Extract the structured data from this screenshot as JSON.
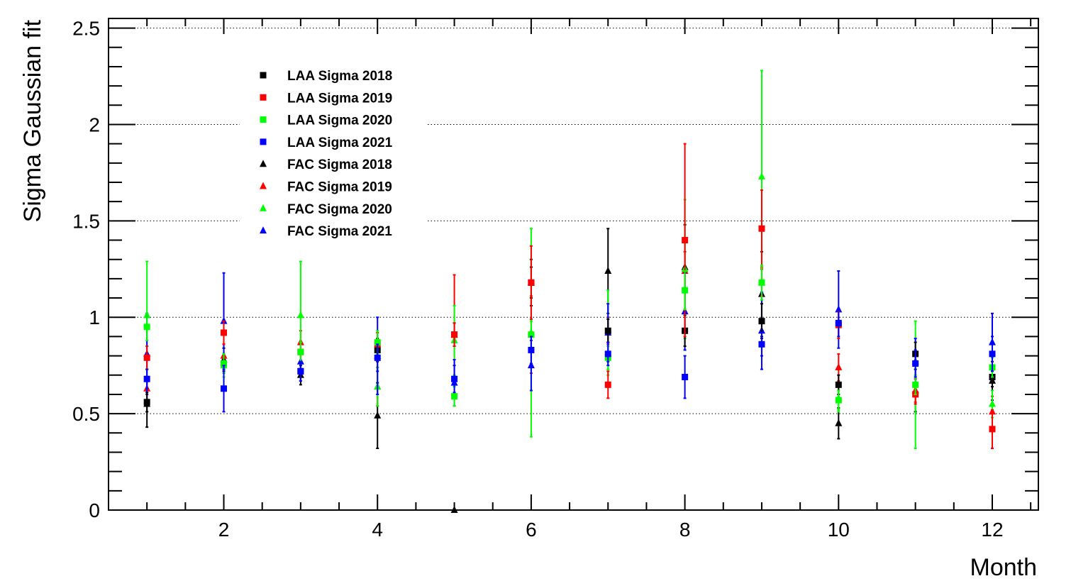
{
  "chart_data": {
    "type": "scatter",
    "xlabel": "Month",
    "ylabel": "Sigma Gaussian fit",
    "xlim": [
      0.5,
      12.6
    ],
    "ylim": [
      0,
      2.55
    ],
    "x_ticks": [
      2,
      4,
      6,
      8,
      10,
      12
    ],
    "x_tick_labels": [
      "2",
      "4",
      "6",
      "8",
      "10",
      "12"
    ],
    "y_ticks": [
      0,
      0.5,
      1,
      1.5,
      2,
      2.5
    ],
    "y_tick_labels": [
      "0",
      "0.5",
      "1",
      "1.5",
      "2",
      "2.5"
    ],
    "grid": "horizontal dotted",
    "legend_position": "top-left",
    "series": [
      {
        "name": "LAA Sigma 2018",
        "marker": "square",
        "color": "#000000",
        "points": [
          [
            1,
            0.56,
            0.05
          ],
          [
            2,
            0.76,
            0.05
          ],
          [
            3,
            0.72,
            0.05
          ],
          [
            4,
            0.83,
            0.06
          ],
          [
            5,
            0.91,
            0.06
          ],
          [
            6,
            1.18,
            0.08
          ],
          [
            7,
            0.93,
            0.06
          ],
          [
            8,
            0.93,
            0.08
          ],
          [
            9,
            0.98,
            0.09
          ],
          [
            10,
            0.65,
            0.05
          ],
          [
            11,
            0.81,
            0.06
          ],
          [
            12,
            0.69,
            0.05
          ]
        ]
      },
      {
        "name": "LAA Sigma 2019",
        "marker": "square",
        "color": "#ff0000",
        "points": [
          [
            1,
            0.79,
            0.06
          ],
          [
            2,
            0.92,
            0.06
          ],
          [
            3,
            0.82,
            0.05
          ],
          [
            4,
            0.86,
            0.06
          ],
          [
            5,
            0.91,
            0.06
          ],
          [
            6,
            1.18,
            0.19
          ],
          [
            7,
            0.65,
            0.07
          ],
          [
            8,
            1.4,
            0.5
          ],
          [
            9,
            1.46,
            0.2
          ],
          [
            10,
            0.96,
            0.07
          ],
          [
            11,
            0.6,
            0.05
          ],
          [
            12,
            0.42,
            0.1
          ]
        ]
      },
      {
        "name": "LAA Sigma 2020",
        "marker": "square",
        "color": "#00ff00",
        "points": [
          [
            1,
            0.95,
            0.07
          ],
          [
            2,
            0.76,
            0.05
          ],
          [
            3,
            0.82,
            0.05
          ],
          [
            4,
            0.87,
            0.06
          ],
          [
            5,
            0.59,
            0.05
          ],
          [
            6,
            0.91,
            0.07
          ],
          [
            7,
            0.79,
            0.06
          ],
          [
            8,
            1.14,
            0.1
          ],
          [
            9,
            1.18,
            0.09
          ],
          [
            10,
            0.57,
            0.05
          ],
          [
            11,
            0.65,
            0.05
          ],
          [
            12,
            0.74,
            0.05
          ]
        ]
      },
      {
        "name": "LAA Sigma 2021",
        "marker": "square",
        "color": "#0000ff",
        "points": [
          [
            1,
            0.68,
            0.05
          ],
          [
            2,
            0.63,
            0.12
          ],
          [
            3,
            0.72,
            0.05
          ],
          [
            4,
            0.79,
            0.07
          ],
          [
            5,
            0.68,
            0.07
          ],
          [
            6,
            0.83,
            0.07
          ],
          [
            7,
            0.81,
            0.06
          ],
          [
            8,
            0.69,
            0.11
          ],
          [
            9,
            0.86,
            0.06
          ],
          [
            10,
            0.97,
            0.07
          ],
          [
            11,
            0.76,
            0.07
          ],
          [
            12,
            0.81,
            0.09
          ]
        ]
      },
      {
        "name": "FAC Sigma 2018",
        "marker": "triangle",
        "color": "#000000",
        "points": [
          [
            1,
            0.55,
            0.12
          ],
          [
            2,
            0.78,
            0.06
          ],
          [
            3,
            0.7,
            0.05
          ],
          [
            4,
            0.49,
            0.17
          ],
          [
            5,
            0.0,
            0.0
          ],
          [
            6,
            1.18,
            0.12
          ],
          [
            7,
            1.24,
            0.22
          ],
          [
            8,
            1.26,
            0.22
          ],
          [
            9,
            1.12,
            0.22
          ],
          [
            10,
            0.45,
            0.08
          ],
          [
            11,
            0.62,
            0.11
          ],
          [
            12,
            0.67,
            0.1
          ]
        ]
      },
      {
        "name": "FAC Sigma 2019",
        "marker": "triangle",
        "color": "#ff0000",
        "points": [
          [
            1,
            0.63,
            0.06
          ],
          [
            2,
            0.8,
            0.06
          ],
          [
            3,
            0.87,
            0.06
          ],
          [
            4,
            0.64,
            0.1
          ],
          [
            5,
            0.91,
            0.31
          ],
          [
            6,
            0.91,
            0.2
          ],
          [
            7,
            0.93,
            0.07
          ],
          [
            8,
            1.24,
            0.1
          ],
          [
            9,
            1.18,
            0.07
          ],
          [
            10,
            0.74,
            0.07
          ],
          [
            11,
            0.62,
            0.06
          ],
          [
            12,
            0.51,
            0.08
          ]
        ]
      },
      {
        "name": "FAC Sigma 2020",
        "marker": "triangle",
        "color": "#00ff00",
        "points": [
          [
            1,
            1.01,
            0.28
          ],
          [
            2,
            0.75,
            0.06
          ],
          [
            3,
            1.01,
            0.28
          ],
          [
            4,
            0.64,
            0.1
          ],
          [
            5,
            0.88,
            0.18
          ],
          [
            6,
            0.92,
            0.54
          ],
          [
            7,
            0.92,
            0.22
          ],
          [
            8,
            1.25,
            0.36
          ],
          [
            9,
            1.73,
            0.55
          ],
          [
            10,
            0.58,
            0.07
          ],
          [
            11,
            0.65,
            0.33
          ],
          [
            12,
            0.55,
            0.07
          ]
        ]
      },
      {
        "name": "FAC Sigma 2021",
        "marker": "triangle",
        "color": "#0000ff",
        "points": [
          [
            1,
            0.81,
            0.21
          ],
          [
            2,
            0.98,
            0.25
          ],
          [
            3,
            0.77,
            0.06
          ],
          [
            4,
            0.8,
            0.2
          ],
          [
            5,
            0.66,
            0.12
          ],
          [
            6,
            0.75,
            0.13
          ],
          [
            7,
            0.92,
            0.15
          ],
          [
            8,
            1.03,
            0.2
          ],
          [
            9,
            0.93,
            0.2
          ],
          [
            10,
            1.04,
            0.2
          ],
          [
            11,
            0.77,
            0.12
          ],
          [
            12,
            0.87,
            0.15
          ]
        ]
      }
    ]
  }
}
